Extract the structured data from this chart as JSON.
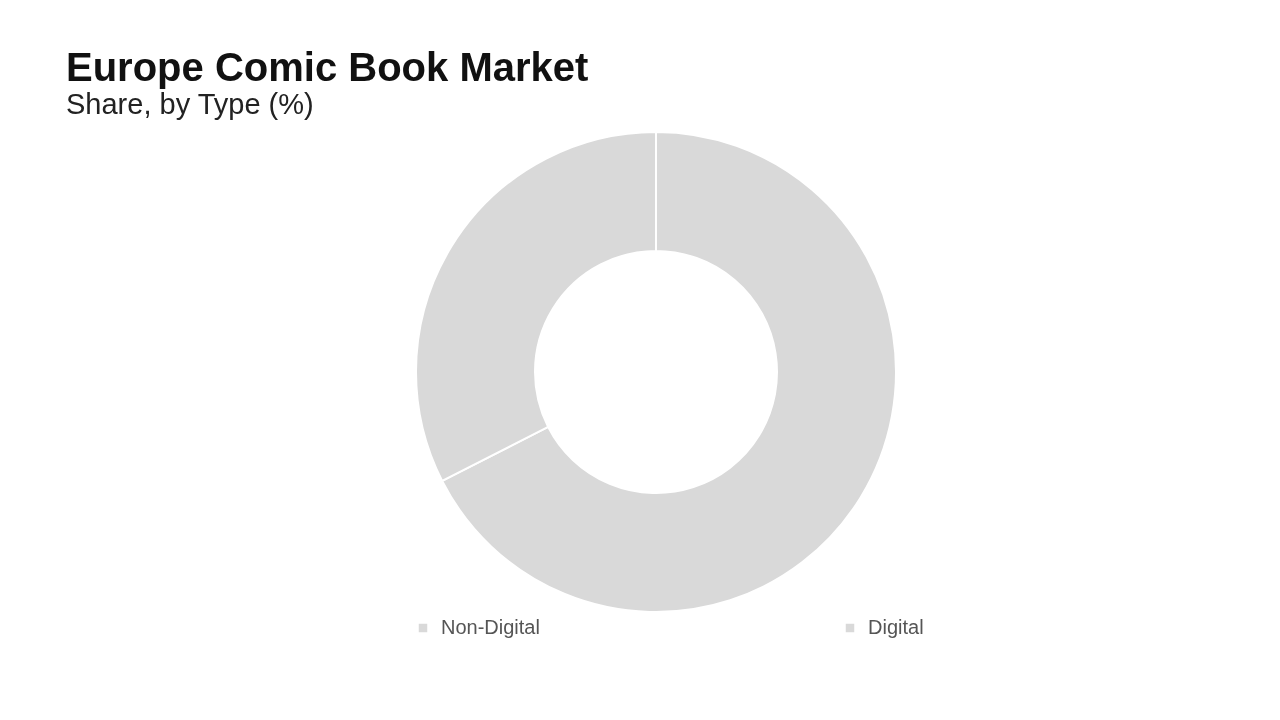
{
  "chart_data": {
    "type": "donut",
    "title": "Europe Comic Book Market",
    "subtitle": "Share, by Type (%)",
    "categories": [
      "Non-Digital",
      "Digital"
    ],
    "values": [
      67.5,
      32.5
    ],
    "colors": [
      "#d9d9d9",
      "#d9d9d9"
    ],
    "legend": "bottom"
  }
}
